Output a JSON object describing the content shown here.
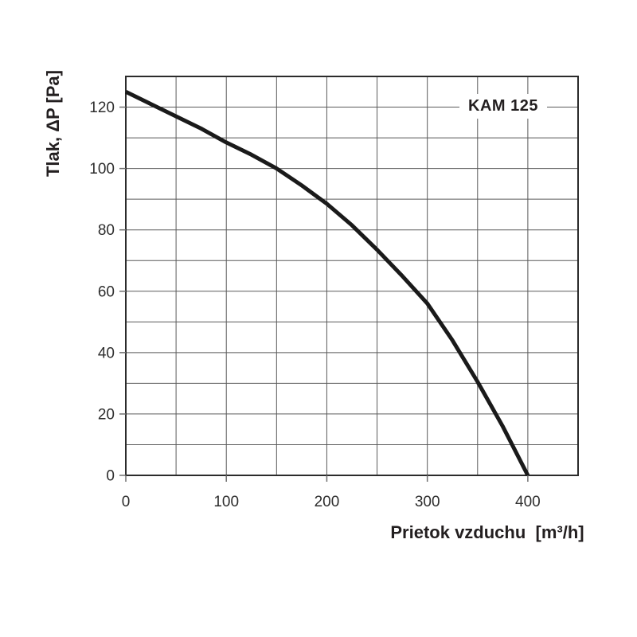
{
  "chart_data": {
    "type": "line",
    "title": "KAM 125",
    "xlabel": "Prietok vzduchu  [m³/h]",
    "ylabel": "Tlak, ΔP [Pa]",
    "xlim": [
      0,
      450
    ],
    "ylim": [
      0,
      130
    ],
    "x_ticks": [
      0,
      100,
      200,
      300,
      400
    ],
    "y_ticks": [
      0,
      20,
      40,
      60,
      80,
      100,
      120
    ],
    "x_grid_step": 50,
    "y_grid_step": 10,
    "grid": true,
    "legend_position": "top-right-inside",
    "series": [
      {
        "name": "KAM 125",
        "x": [
          0,
          25,
          50,
          75,
          100,
          125,
          150,
          175,
          200,
          225,
          250,
          275,
          300,
          325,
          350,
          375,
          400
        ],
        "y": [
          125,
          121,
          117,
          113,
          108.5,
          104.5,
          100,
          94.5,
          88.5,
          81.5,
          73.5,
          65,
          56,
          44,
          30.5,
          16,
          0
        ]
      }
    ],
    "colors": {
      "curve": "#1a1a1a",
      "grid": "#5a5a5a",
      "border": "#2b2b2b",
      "tick": "#6f6f6f",
      "text": "#2e2e2e"
    }
  }
}
